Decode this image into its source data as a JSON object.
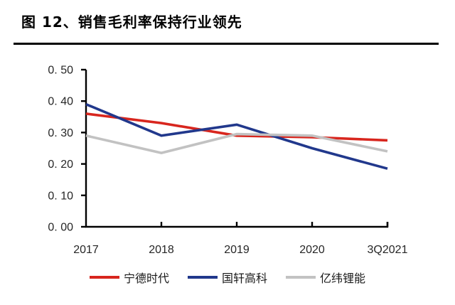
{
  "header": {
    "title": "图 12、销售毛利率保持行业领先"
  },
  "colors": {
    "axis_line": "#000000",
    "tick_text": "#262626",
    "title_text": "#000000",
    "divider": "#000000"
  },
  "chart_data": {
    "type": "line",
    "title": "销售毛利率保持行业领先",
    "categories": [
      "2017",
      "2018",
      "2019",
      "2020",
      "3Q2021"
    ],
    "series": [
      {
        "name": "宁德时代",
        "color": "#D8261E",
        "values": [
          0.36,
          0.33,
          0.29,
          0.285,
          0.275
        ]
      },
      {
        "name": "国轩高科",
        "color": "#21388C",
        "values": [
          0.39,
          0.29,
          0.325,
          0.25,
          0.185
        ]
      },
      {
        "name": "亿纬锂能",
        "color": "#C2C2C2",
        "values": [
          0.29,
          0.235,
          0.295,
          0.29,
          0.24
        ]
      }
    ],
    "xlabel": "",
    "ylabel": "",
    "ylim": [
      0,
      0.5
    ],
    "y_ticks": {
      "values": [
        0,
        0.1,
        0.2,
        0.3,
        0.4,
        0.5
      ],
      "labels": [
        "0. 00",
        "0. 10",
        "0. 20",
        "0. 30",
        "0. 40",
        "0. 50"
      ]
    },
    "grid": false,
    "legend_position": "bottom"
  }
}
